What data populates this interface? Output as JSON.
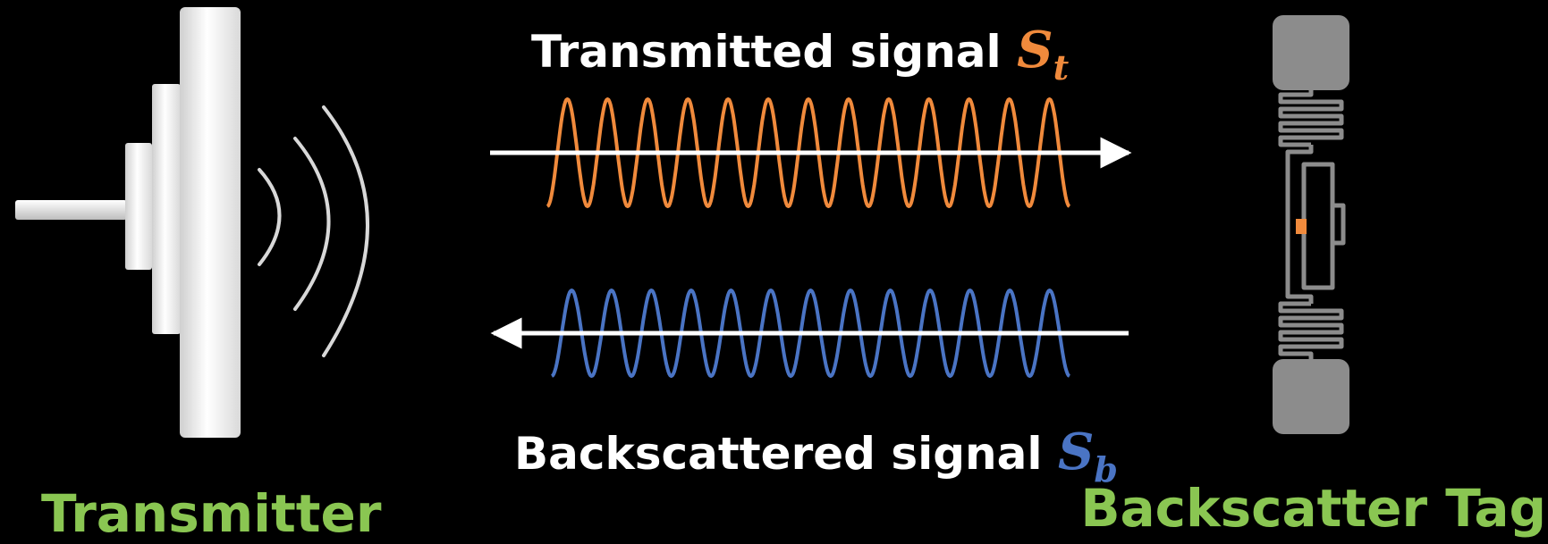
{
  "transmitted": {
    "label": "Transmitted signal",
    "symbol": "S",
    "subscript": "t",
    "color": "#f08a3c"
  },
  "backscattered": {
    "label": "Backscattered signal",
    "symbol": "S",
    "subscript": "b",
    "color": "#4a74c4"
  },
  "devices": {
    "transmitter": "Transmitter",
    "tag": "Backscatter Tag",
    "label_color": "#8ac652"
  },
  "icons": {
    "transmitter": "antenna-icon",
    "tag": "rfid-tag-icon"
  },
  "waves": {
    "cycles": 13
  }
}
